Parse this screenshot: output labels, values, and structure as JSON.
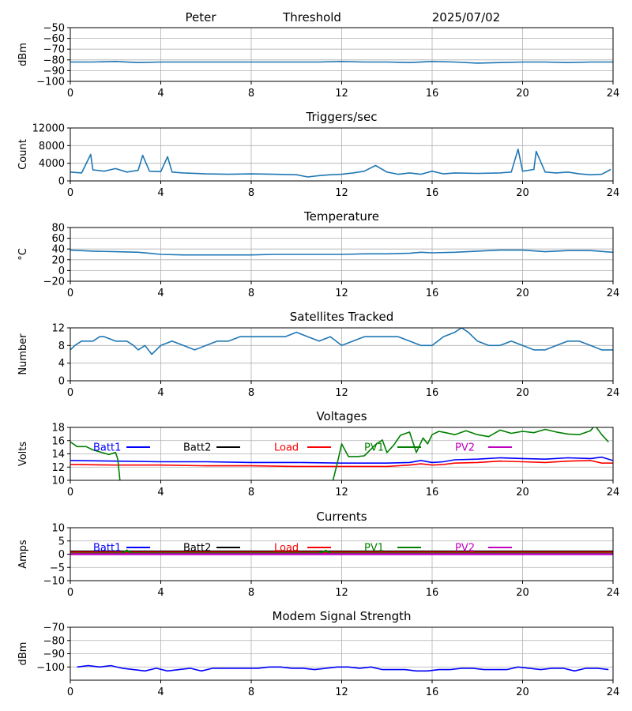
{
  "header": {
    "left": "Peter",
    "center": "Threshold",
    "right": "2025/07/02"
  },
  "colors": {
    "default_line": "#1f77b4",
    "grid": "#b0b0b0",
    "batt1": "#0000ff",
    "batt2": "#000000",
    "load": "#ff0000",
    "pv1": "#008000",
    "pv2": "#bf00bf"
  },
  "chart_data": [
    {
      "type": "line",
      "title": "",
      "ylabel": "dBm",
      "xlim": [
        0,
        24
      ],
      "xticks": [
        "0",
        "4",
        "8",
        "12",
        "16",
        "20",
        "24"
      ],
      "ylim": [
        -100,
        -50
      ],
      "yticks": [
        "−100",
        "−90",
        "−80",
        "−70",
        "−60",
        "−50"
      ],
      "grid": true,
      "series": [
        {
          "x": [
            0,
            1,
            2,
            3,
            4,
            5,
            6,
            7,
            8,
            9,
            10,
            11,
            12,
            13,
            14,
            15,
            16,
            17,
            18,
            19,
            20,
            21,
            22,
            23,
            24
          ],
          "y": [
            -82,
            -82,
            -81.5,
            -82.5,
            -82,
            -82,
            -82,
            -82,
            -82,
            -82,
            -82,
            -82,
            -81.5,
            -82,
            -82,
            -82.5,
            -81.5,
            -82,
            -83,
            -82.5,
            -82,
            -82,
            -82.5,
            -82,
            -82
          ]
        }
      ]
    },
    {
      "type": "line",
      "title": "Triggers/sec",
      "ylabel": "Count",
      "xlim": [
        0,
        24
      ],
      "xticks": [
        "0",
        "4",
        "8",
        "12",
        "16",
        "20",
        "24"
      ],
      "ylim": [
        0,
        12000
      ],
      "yticks": [
        "0",
        "4000",
        "8000",
        "12000"
      ],
      "grid": true,
      "series": [
        {
          "x": [
            0,
            0.5,
            0.9,
            1.0,
            1.5,
            2.0,
            2.5,
            3.0,
            3.2,
            3.5,
            4.0,
            4.3,
            4.5,
            5.0,
            6.0,
            7.0,
            8.0,
            9.0,
            10.0,
            10.5,
            11.0,
            11.5,
            12.0,
            12.5,
            13.0,
            13.5,
            14.0,
            14.5,
            15.0,
            15.5,
            16.0,
            16.5,
            17.0,
            18.0,
            19.0,
            19.5,
            19.8,
            20.0,
            20.5,
            20.6,
            21.0,
            21.5,
            22.0,
            22.5,
            23.0,
            23.5,
            23.9
          ],
          "y": [
            2000,
            1800,
            6000,
            2500,
            2200,
            2800,
            2000,
            2400,
            5800,
            2200,
            2100,
            5500,
            2000,
            1800,
            1600,
            1500,
            1600,
            1500,
            1400,
            900,
            1200,
            1400,
            1500,
            1800,
            2200,
            3500,
            2000,
            1500,
            1800,
            1500,
            2200,
            1600,
            1800,
            1700,
            1800,
            2000,
            7200,
            2200,
            2600,
            6700,
            2000,
            1800,
            2000,
            1600,
            1400,
            1500,
            2600
          ]
        }
      ]
    },
    {
      "type": "line",
      "title": "Temperature",
      "ylabel": "°C",
      "xlim": [
        0,
        24
      ],
      "xticks": [
        "0",
        "4",
        "8",
        "12",
        "16",
        "20",
        "24"
      ],
      "ylim": [
        -20,
        80
      ],
      "yticks": [
        "−20",
        "0",
        "20",
        "40",
        "60",
        "80"
      ],
      "grid": true,
      "series": [
        {
          "x": [
            0,
            1,
            2,
            3,
            3.5,
            4,
            5,
            6,
            7,
            8,
            9,
            10,
            11,
            12,
            13,
            14,
            15,
            15.5,
            16,
            17,
            18,
            19,
            20,
            21,
            22,
            23,
            24
          ],
          "y": [
            38,
            36,
            35,
            34,
            32,
            30,
            29,
            29,
            29,
            29,
            30,
            30,
            30,
            30,
            31,
            31,
            32,
            34,
            33,
            34,
            36,
            38,
            38,
            35,
            37,
            37,
            34
          ]
        }
      ]
    },
    {
      "type": "line",
      "title": "Satellites Tracked",
      "ylabel": "Number",
      "xlim": [
        0,
        24
      ],
      "xticks": [
        "0",
        "4",
        "8",
        "12",
        "16",
        "20",
        "24"
      ],
      "ylim": [
        0,
        12
      ],
      "yticks": [
        "0",
        "4",
        "8",
        "12"
      ],
      "grid": true,
      "series": [
        {
          "x": [
            0,
            0.2,
            0.5,
            1.0,
            1.3,
            1.5,
            2.0,
            2.5,
            2.8,
            3.0,
            3.3,
            3.6,
            4.0,
            4.5,
            5.0,
            5.5,
            6.0,
            6.5,
            7.0,
            7.5,
            8.0,
            8.5,
            9.0,
            9.5,
            10.0,
            10.5,
            11.0,
            11.5,
            12.0,
            12.5,
            13.0,
            13.5,
            14.0,
            14.5,
            15.0,
            15.5,
            16.0,
            16.5,
            17.0,
            17.3,
            17.6,
            18.0,
            18.5,
            19.0,
            19.5,
            20.0,
            20.5,
            21.0,
            21.5,
            22.0,
            22.5,
            23.0,
            23.5,
            24.0
          ],
          "y": [
            7,
            8,
            9,
            9,
            10,
            10,
            9,
            9,
            8,
            7,
            8,
            6,
            8,
            9,
            8,
            7,
            8,
            9,
            9,
            10,
            10,
            10,
            10,
            10,
            11,
            10,
            9,
            10,
            8,
            9,
            10,
            10,
            10,
            10,
            9,
            8,
            8,
            10,
            11,
            12,
            11,
            9,
            8,
            8,
            9,
            8,
            7,
            7,
            8,
            9,
            9,
            8,
            7,
            7
          ]
        }
      ]
    },
    {
      "type": "line",
      "title": "Voltages",
      "ylabel": "Volts",
      "xlim": [
        0,
        24
      ],
      "xticks": [
        "0",
        "4",
        "8",
        "12",
        "16",
        "20",
        "24"
      ],
      "ylim": [
        10,
        18
      ],
      "yticks": [
        "10",
        "12",
        "14",
        "16",
        "18"
      ],
      "grid": true,
      "legend": "top",
      "series": [
        {
          "name": "Batt1",
          "color": "#0000ff",
          "x": [
            0,
            2,
            4,
            6,
            8,
            10,
            12,
            14,
            15,
            15.5,
            16,
            16.5,
            17,
            18,
            19,
            20,
            21,
            22,
            23,
            23.5,
            24
          ],
          "y": [
            13,
            12.9,
            12.8,
            12.8,
            12.7,
            12.7,
            12.6,
            12.6,
            12.7,
            13,
            12.7,
            12.8,
            13.1,
            13.2,
            13.4,
            13.3,
            13.2,
            13.4,
            13.3,
            13.5,
            13
          ]
        },
        {
          "name": "Batt2",
          "color": "#000000",
          "x": [],
          "y": []
        },
        {
          "name": "Load",
          "color": "#ff0000",
          "x": [
            0,
            2,
            4,
            6,
            8,
            10,
            12,
            14,
            15,
            15.5,
            16,
            16.5,
            17,
            18,
            19,
            20,
            21,
            22,
            23,
            23.5,
            24
          ],
          "y": [
            12.4,
            12.3,
            12.3,
            12.2,
            12.2,
            12.1,
            12.1,
            12.1,
            12.3,
            12.5,
            12.3,
            12.4,
            12.6,
            12.7,
            12.9,
            12.8,
            12.7,
            12.9,
            13,
            12.6,
            12.6
          ]
        },
        {
          "name": "PV1",
          "color": "#008000",
          "x": [
            0,
            0.3,
            0.7,
            1.0,
            1.3,
            1.7,
            2.0,
            2.1,
            2.2,
            11.6,
            11.8,
            12.0,
            12.3,
            12.7,
            13.0,
            13.5,
            13.8,
            14.0,
            14.3,
            14.6,
            15.0,
            15.3,
            15.6,
            15.8,
            16.0,
            16.3,
            16.6,
            17.0,
            17.5,
            18.0,
            18.5,
            19.0,
            19.5,
            20.0,
            20.5,
            21.0,
            21.5,
            22.0,
            22.5,
            23.0,
            23.2,
            23.5,
            23.8
          ],
          "y": [
            15.8,
            15.1,
            15.1,
            14.6,
            14.3,
            13.9,
            14.2,
            13.2,
            9.8,
            9.8,
            12.5,
            15.5,
            13.6,
            13.6,
            13.7,
            15.4,
            16.1,
            14.2,
            15.3,
            16.8,
            17.3,
            14.2,
            16.4,
            15.5,
            16.9,
            17.4,
            17.2,
            16.9,
            17.5,
            16.9,
            16.6,
            17.6,
            17.1,
            17.4,
            17.2,
            17.7,
            17.3,
            17.0,
            16.9,
            17.5,
            18.3,
            16.9,
            15.8
          ]
        },
        {
          "name": "PV2",
          "color": "#bf00bf",
          "x": [],
          "y": []
        }
      ]
    },
    {
      "type": "line",
      "title": "Currents",
      "ylabel": "Amps",
      "xlim": [
        0,
        24
      ],
      "xticks": [
        "0",
        "4",
        "8",
        "12",
        "16",
        "20",
        "24"
      ],
      "ylim": [
        -10,
        10
      ],
      "yticks": [
        "−10",
        "−5",
        "0",
        "5",
        "10"
      ],
      "grid": true,
      "legend": "top",
      "series": [
        {
          "name": "Batt1",
          "color": "#0000ff",
          "x": [
            0,
            24
          ],
          "y": [
            0.4,
            0.4
          ]
        },
        {
          "name": "Batt2",
          "color": "#000000",
          "x": [
            0,
            24
          ],
          "y": [
            1,
            1
          ]
        },
        {
          "name": "Load",
          "color": "#ff0000",
          "x": [
            0,
            24
          ],
          "y": [
            0.7,
            0.7
          ]
        },
        {
          "name": "PV1",
          "color": "#008000",
          "x": [
            0,
            2.3,
            2.5,
            2.7,
            11.0,
            11.3,
            11.5,
            24
          ],
          "y": [
            0.2,
            0.3,
            1.4,
            0.3,
            0.3,
            1.3,
            0.3,
            0.2
          ]
        },
        {
          "name": "PV2",
          "color": "#bf00bf",
          "x": [
            0,
            24
          ],
          "y": [
            0,
            0
          ]
        }
      ]
    },
    {
      "type": "line",
      "title": "Modem Signal Strength",
      "ylabel": "dBm",
      "xlim": [
        0,
        24
      ],
      "xticks": [
        "0",
        "4",
        "8",
        "12",
        "16",
        "20",
        "24"
      ],
      "ylim": [
        -110,
        -70
      ],
      "yticks": [
        "−100",
        "−90",
        "−80",
        "−70"
      ],
      "grid": true,
      "series": [
        {
          "color": "#0000ff",
          "x": [
            0.3,
            0.8,
            1.3,
            1.8,
            2.3,
            2.8,
            3.3,
            3.8,
            4.3,
            4.8,
            5.3,
            5.8,
            6.3,
            6.8,
            7.3,
            7.8,
            8.3,
            8.8,
            9.3,
            9.8,
            10.3,
            10.8,
            11.3,
            11.8,
            12.3,
            12.8,
            13.3,
            13.8,
            14.3,
            14.8,
            15.3,
            15.8,
            16.3,
            16.8,
            17.3,
            17.8,
            18.3,
            18.8,
            19.3,
            19.8,
            20.3,
            20.8,
            21.3,
            21.8,
            22.3,
            22.8,
            23.3,
            23.8
          ],
          "y": [
            -100,
            -99,
            -100,
            -99,
            -101,
            -102,
            -103,
            -101,
            -103,
            -102,
            -101,
            -103,
            -101,
            -101,
            -101,
            -101,
            -101,
            -100,
            -100,
            -101,
            -101,
            -102,
            -101,
            -100,
            -100,
            -101,
            -100,
            -102,
            -102,
            -102,
            -103,
            -103,
            -102,
            -102,
            -101,
            -101,
            -102,
            -102,
            -102,
            -100,
            -101,
            -102,
            -101,
            -101,
            -103,
            -101,
            -101,
            -102
          ]
        }
      ]
    }
  ]
}
